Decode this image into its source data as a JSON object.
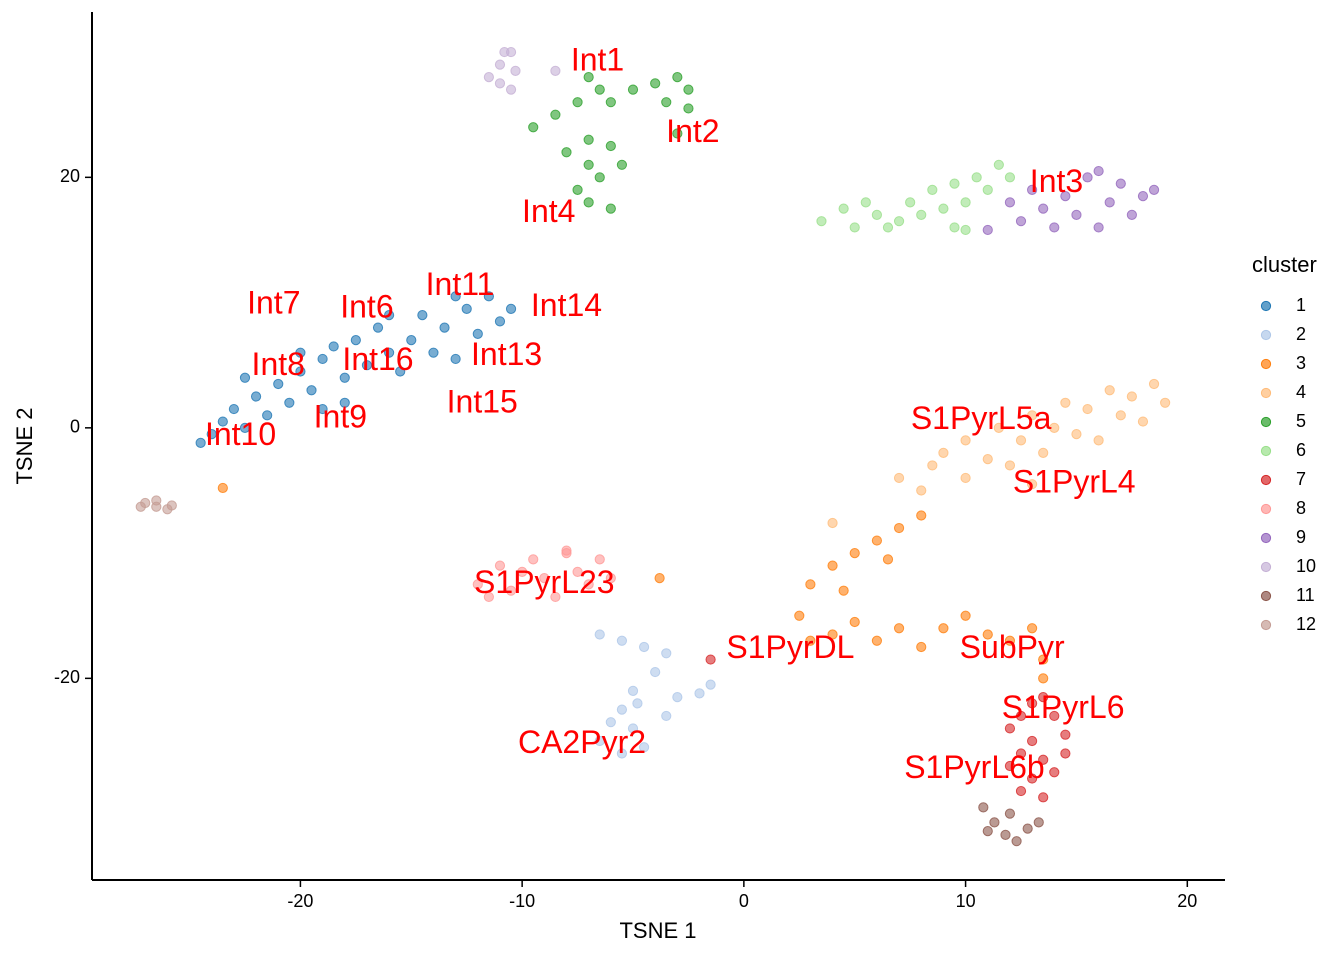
{
  "chart_data": {
    "type": "scatter",
    "xlabel": "TSNE 1",
    "ylabel": "TSNE 2",
    "xlim": [
      -29.4,
      21.7
    ],
    "ylim": [
      -36.1,
      33.2
    ],
    "xticks": [
      -20,
      -10,
      0,
      10,
      20
    ],
    "yticks": [
      -20,
      0,
      20
    ],
    "grid": false,
    "legend_title": "cluster",
    "legend": "right",
    "series": [
      {
        "name": "1",
        "color": "#1f77b4",
        "x": [
          -24.5,
          -24,
          -23.5,
          -23,
          -22.5,
          -22,
          -21.5,
          -21,
          -20.5,
          -20,
          -19.5,
          -19,
          -19,
          -18.5,
          -18,
          -17.5,
          -17,
          -16.5,
          -16,
          -15.5,
          -15,
          -14.5,
          -14,
          -13.5,
          -13,
          -12.5,
          -12,
          -11.5,
          -11,
          -10.5,
          -20,
          -22.5,
          -18,
          -16,
          -13
        ],
        "y": [
          -1.2,
          -0.5,
          0.5,
          1.5,
          0,
          2.5,
          1,
          3.5,
          2,
          4.5,
          3,
          5.5,
          1.5,
          6.5,
          4,
          7,
          5,
          8,
          6,
          4.5,
          7,
          9,
          6,
          8,
          5.5,
          9.5,
          7.5,
          10.5,
          8.5,
          9.5,
          6,
          4,
          2,
          9,
          10.5
        ]
      },
      {
        "name": "2",
        "color": "#aec7e8",
        "x": [
          -6.5,
          -5.5,
          -4.5,
          -3.5,
          -4,
          -5,
          -5.5,
          -6,
          -5,
          -6.5,
          -4.5,
          -5.5,
          -3,
          -2,
          -1.5,
          -3.5,
          -4.8
        ],
        "y": [
          -16.5,
          -17,
          -17.5,
          -18,
          -19.5,
          -21,
          -22.5,
          -23.5,
          -24,
          -25,
          -25.5,
          -26,
          -21.5,
          -21.2,
          -20.5,
          -23,
          -22
        ]
      },
      {
        "name": "3",
        "color": "#ff7f0e",
        "x": [
          2.5,
          3,
          4,
          5,
          6,
          7,
          8,
          9,
          10,
          11,
          12,
          13,
          13.5,
          13.5,
          3,
          4,
          5,
          6,
          7,
          8,
          4.5,
          6.5,
          -23.5,
          -3.8
        ],
        "y": [
          -15,
          -17,
          -16.5,
          -15.5,
          -17,
          -16,
          -17.5,
          -16,
          -15,
          -16.5,
          -17,
          -16,
          -18.5,
          -20,
          -12.5,
          -11,
          -10,
          -9,
          -8,
          -7,
          -13,
          -10.5,
          -4.8,
          -12
        ]
      },
      {
        "name": "4",
        "color": "#ffbb78",
        "x": [
          7,
          8,
          8.5,
          9,
          10,
          10,
          11,
          11.5,
          12,
          12.5,
          13,
          13.5,
          14,
          14.5,
          15,
          15.5,
          16,
          16.5,
          17,
          17.5,
          18,
          18.5,
          19,
          13,
          4
        ],
        "y": [
          -4,
          -5,
          -3,
          -2,
          -1,
          -4,
          -2.5,
          0,
          -3,
          -1,
          1,
          -2,
          0,
          2,
          -0.5,
          1.5,
          -1,
          3,
          1,
          2.5,
          0.5,
          3.5,
          2,
          -4.5,
          -7.6
        ]
      },
      {
        "name": "5",
        "color": "#2ca02c",
        "x": [
          -9.5,
          -8.5,
          -7.5,
          -7,
          -6.5,
          -6,
          -5,
          -4,
          -3,
          -2.5,
          -2.5,
          -3.5,
          -7,
          -6,
          -7,
          -6.5,
          -7.5,
          -7,
          -6,
          -5.5,
          -8,
          -3
        ],
        "y": [
          24,
          25,
          26,
          28,
          27,
          26,
          27,
          27.5,
          28,
          27,
          25.5,
          26,
          23,
          22.5,
          21,
          20,
          19,
          18,
          17.5,
          21,
          22,
          23.5
        ]
      },
      {
        "name": "6",
        "color": "#98df8a",
        "x": [
          3.5,
          4.5,
          5,
          5.5,
          6,
          6.5,
          7,
          7.5,
          8,
          8.5,
          9,
          9.5,
          9.5,
          10,
          10.5,
          11,
          11.5,
          12,
          10
        ],
        "y": [
          16.5,
          17.5,
          16,
          18,
          17,
          16,
          16.5,
          18,
          17,
          19,
          17.5,
          16,
          19.5,
          18,
          20,
          19,
          21,
          20,
          15.8
        ]
      },
      {
        "name": "7",
        "color": "#d62728",
        "x": [
          12,
          12.5,
          13,
          13.5,
          14,
          14.5,
          13,
          12.5,
          13.5,
          14,
          13,
          14.5,
          12.5,
          13.5,
          12,
          -1.5
        ],
        "y": [
          -24,
          -23,
          -22,
          -21.5,
          -23,
          -24.5,
          -25,
          -26,
          -26.5,
          -27.5,
          -28,
          -26,
          -29,
          -29.5,
          -27,
          -18.5
        ]
      },
      {
        "name": "8",
        "color": "#ff9896",
        "x": [
          -12,
          -11,
          -10.5,
          -10,
          -9.5,
          -9,
          -8.5,
          -8,
          -7.5,
          -7,
          -6.5,
          -6,
          -11.5,
          -8
        ],
        "y": [
          -12.5,
          -11,
          -13,
          -11.5,
          -10.5,
          -12,
          -13.5,
          -10,
          -11.5,
          -12.5,
          -10.5,
          -12,
          -13.5,
          -9.8
        ]
      },
      {
        "name": "9",
        "color": "#9467bd",
        "x": [
          12,
          12.5,
          13,
          13.5,
          14,
          14.5,
          15,
          15.5,
          16,
          16.5,
          17,
          17.5,
          18,
          18.5,
          16,
          11
        ],
        "y": [
          18,
          16.5,
          19,
          17.5,
          16,
          18.5,
          17,
          20,
          16,
          18,
          19.5,
          17,
          18.5,
          19,
          20.5,
          15.8
        ]
      },
      {
        "name": "10",
        "color": "#c5b0d5",
        "x": [
          -11.5,
          -11,
          -10.5,
          -11,
          -10.3,
          -10.8,
          -8.5,
          -10.5
        ],
        "y": [
          28,
          29,
          30,
          27.5,
          28.5,
          30,
          28.5,
          27
        ]
      },
      {
        "name": "11",
        "color": "#8c564b",
        "x": [
          10.8,
          11.3,
          11.8,
          12.3,
          12.8,
          13.3,
          12,
          11
        ],
        "y": [
          -30.3,
          -31.5,
          -32.5,
          -33,
          -32,
          -31.5,
          -30.8,
          -32.2
        ]
      },
      {
        "name": "12",
        "color": "#c49c94",
        "x": [
          -27,
          -26.5,
          -26,
          -26.5,
          -25.8,
          -27.2
        ],
        "y": [
          -6,
          -6.3,
          -6.5,
          -5.8,
          -6.2,
          -6.3
        ]
      }
    ],
    "annotation_color": "#ff0000",
    "annotations": [
      {
        "text": "Int1",
        "x": -6.6,
        "y": 29.2
      },
      {
        "text": "Int2",
        "x": -2.3,
        "y": 23.5
      },
      {
        "text": "Int4",
        "x": -8.8,
        "y": 17.1
      },
      {
        "text": "Int3",
        "x": 14.1,
        "y": 19.5
      },
      {
        "text": "Int7",
        "x": -21.2,
        "y": 9.8
      },
      {
        "text": "Int6",
        "x": -17.0,
        "y": 9.5
      },
      {
        "text": "Int11",
        "x": -12.8,
        "y": 11.3
      },
      {
        "text": "Int14",
        "x": -8.0,
        "y": 9.6
      },
      {
        "text": "Int8",
        "x": -21.0,
        "y": 4.9
      },
      {
        "text": "Int16",
        "x": -16.5,
        "y": 5.3
      },
      {
        "text": "Int13",
        "x": -10.7,
        "y": 5.7
      },
      {
        "text": "Int15",
        "x": -11.8,
        "y": 1.9
      },
      {
        "text": "Int9",
        "x": -18.2,
        "y": 0.7
      },
      {
        "text": "Int10",
        "x": -22.7,
        "y": -0.7
      },
      {
        "text": "S1PyrL5a",
        "x": 10.7,
        "y": 0.6
      },
      {
        "text": "S1PyrL4",
        "x": 14.9,
        "y": -4.5
      },
      {
        "text": "S1PyrL23",
        "x": -9.0,
        "y": -12.5
      },
      {
        "text": "S1PyrDL",
        "x": 2.1,
        "y": -17.7
      },
      {
        "text": "SubPyr",
        "x": 12.1,
        "y": -17.7
      },
      {
        "text": "S1PyrL6",
        "x": 14.4,
        "y": -22.5
      },
      {
        "text": "S1PyrL6b",
        "x": 10.4,
        "y": -27.3
      },
      {
        "text": "CA2Pyr2",
        "x": -7.3,
        "y": -25.3
      }
    ]
  }
}
